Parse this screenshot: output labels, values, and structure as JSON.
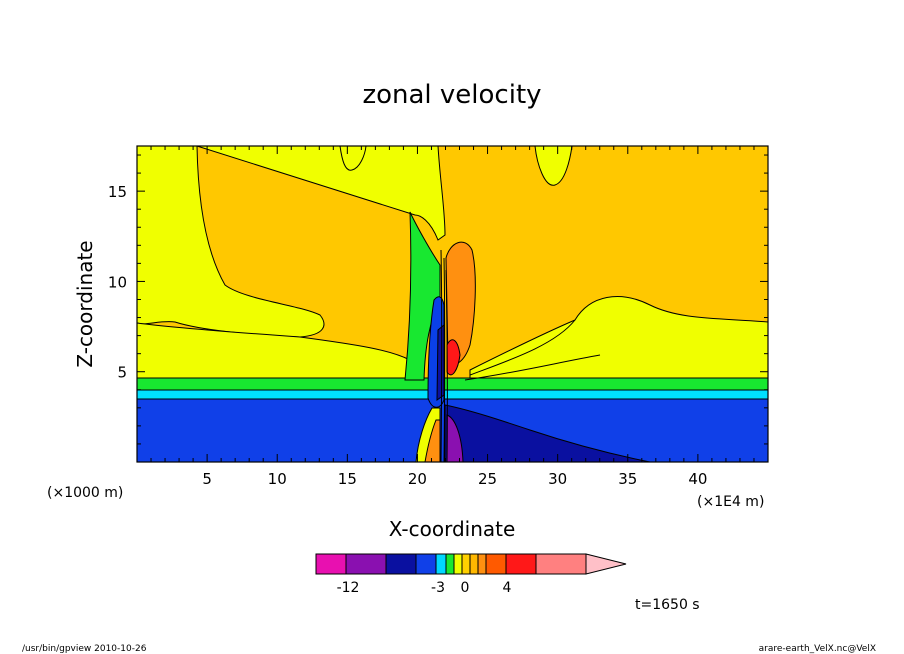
{
  "chart_data": {
    "type": "heatmap",
    "title": "zonal velocity",
    "xlabel": "X-coordinate",
    "ylabel": "Z-coordinate",
    "x_unit_left": "(×1000 m)",
    "x_unit_right": "(×1E4 m)",
    "xlim": [
      0,
      45
    ],
    "ylim": [
      0,
      17.5
    ],
    "x_ticks": [
      5,
      10,
      15,
      20,
      25,
      30,
      35,
      40
    ],
    "y_ticks": [
      5,
      10,
      15
    ],
    "x_tick_labels": [
      "5",
      "10",
      "15",
      "20",
      "25",
      "30",
      "35",
      "40"
    ],
    "y_tick_labels": [
      "5",
      "10",
      "15"
    ],
    "colorbar": {
      "label_values": [
        "-12",
        "-3",
        "0",
        "4"
      ],
      "colors": [
        "#e810b0",
        "#8a10b0",
        "#0a10a0",
        "#1040e8",
        "#00d8ff",
        "#18e830",
        "#f0ff00",
        "#ffd000",
        "#ffb800",
        "#ff9010",
        "#ff5a00",
        "#ff1818",
        "#ff8080",
        "#ffc0c8"
      ]
    },
    "annotation": "t=1650 s",
    "region_colors": {
      "background": "#ffc800",
      "upper": "#f0ff00",
      "band_green": "#18e830",
      "band_cyan": "#00e0ff",
      "lower_blue": "#0a40e8",
      "deep_blue": "#0a10a0",
      "purple": "#8a10b0",
      "orange": "#ff9010",
      "red": "#ff1818"
    }
  },
  "footer": {
    "left": "/usr/bin/gpview   2010-10-26",
    "right": "arare-earth_VelX.nc@VelX"
  }
}
